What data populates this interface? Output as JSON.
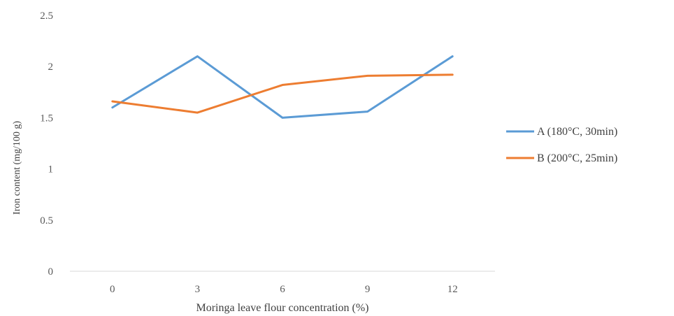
{
  "chart_data": {
    "type": "line",
    "categories": [
      "0",
      "3",
      "6",
      "9",
      "12"
    ],
    "series": [
      {
        "name": "A (180°C, 30min)",
        "values": [
          1.6,
          2.1,
          1.5,
          1.56,
          2.1
        ],
        "color": "#5b9bd5"
      },
      {
        "name": "B (200°C, 25min)",
        "values": [
          1.66,
          1.55,
          1.82,
          1.91,
          1.92
        ],
        "color": "#ed7d31"
      }
    ],
    "xlabel": "Moringa leave flour concentration (%)",
    "ylabel": "Iron content (mg/100 g)",
    "ylim": [
      0,
      2.5
    ],
    "yticks": [
      "0",
      "0.5",
      "1",
      "1.5",
      "2",
      "2.5"
    ],
    "grid": false,
    "legend": "right"
  }
}
